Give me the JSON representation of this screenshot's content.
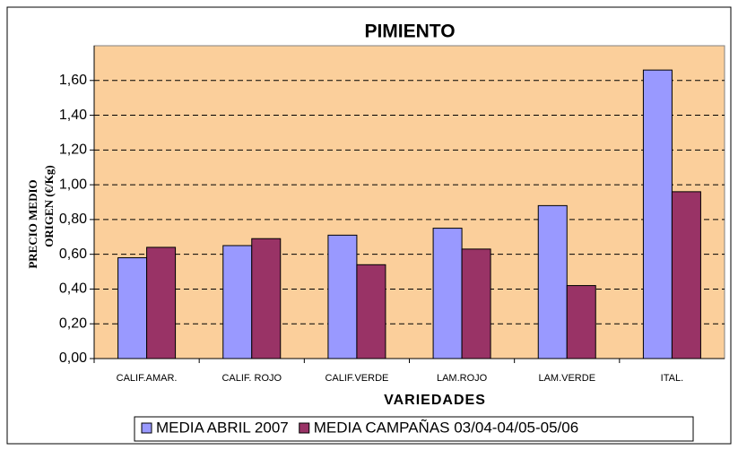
{
  "chart_data": {
    "type": "bar",
    "title": "PIMIENTO",
    "y_label": [
      "PRECIO MEDIO",
      "ORIGEN (€/Kg)"
    ],
    "x_label": "VARIEDADES",
    "categories": [
      "CALIF.AMAR.",
      "CALIF. ROJO",
      "CALIF.VERDE",
      "LAM.ROJO",
      "LAM.VERDE",
      "ITAL."
    ],
    "series": [
      {
        "name": "MEDIA ABRIL 2007",
        "color": "#9999ff",
        "values": [
          0.58,
          0.65,
          0.71,
          0.75,
          0.88,
          1.66
        ]
      },
      {
        "name": "MEDIA CAMPAÑAS 03/04-04/05-05/06",
        "color": "#993366",
        "values": [
          0.64,
          0.69,
          0.54,
          0.63,
          0.42,
          0.96
        ]
      }
    ],
    "ylim": [
      0,
      1.8
    ],
    "yticks": [
      {
        "value": 0,
        "label": "0,00"
      },
      {
        "value": 0.2,
        "label": "0,20"
      },
      {
        "value": 0.4,
        "label": "0,40"
      },
      {
        "value": 0.6,
        "label": "0,60"
      },
      {
        "value": 0.8,
        "label": "0,80"
      },
      {
        "value": 1.0,
        "label": "1,00"
      },
      {
        "value": 1.2,
        "label": "1,20"
      },
      {
        "value": 1.4,
        "label": "1,40"
      },
      {
        "value": 1.6,
        "label": "1,60"
      }
    ],
    "grid": true,
    "plot_background": "#fbcf9b",
    "legend": "bottom"
  }
}
